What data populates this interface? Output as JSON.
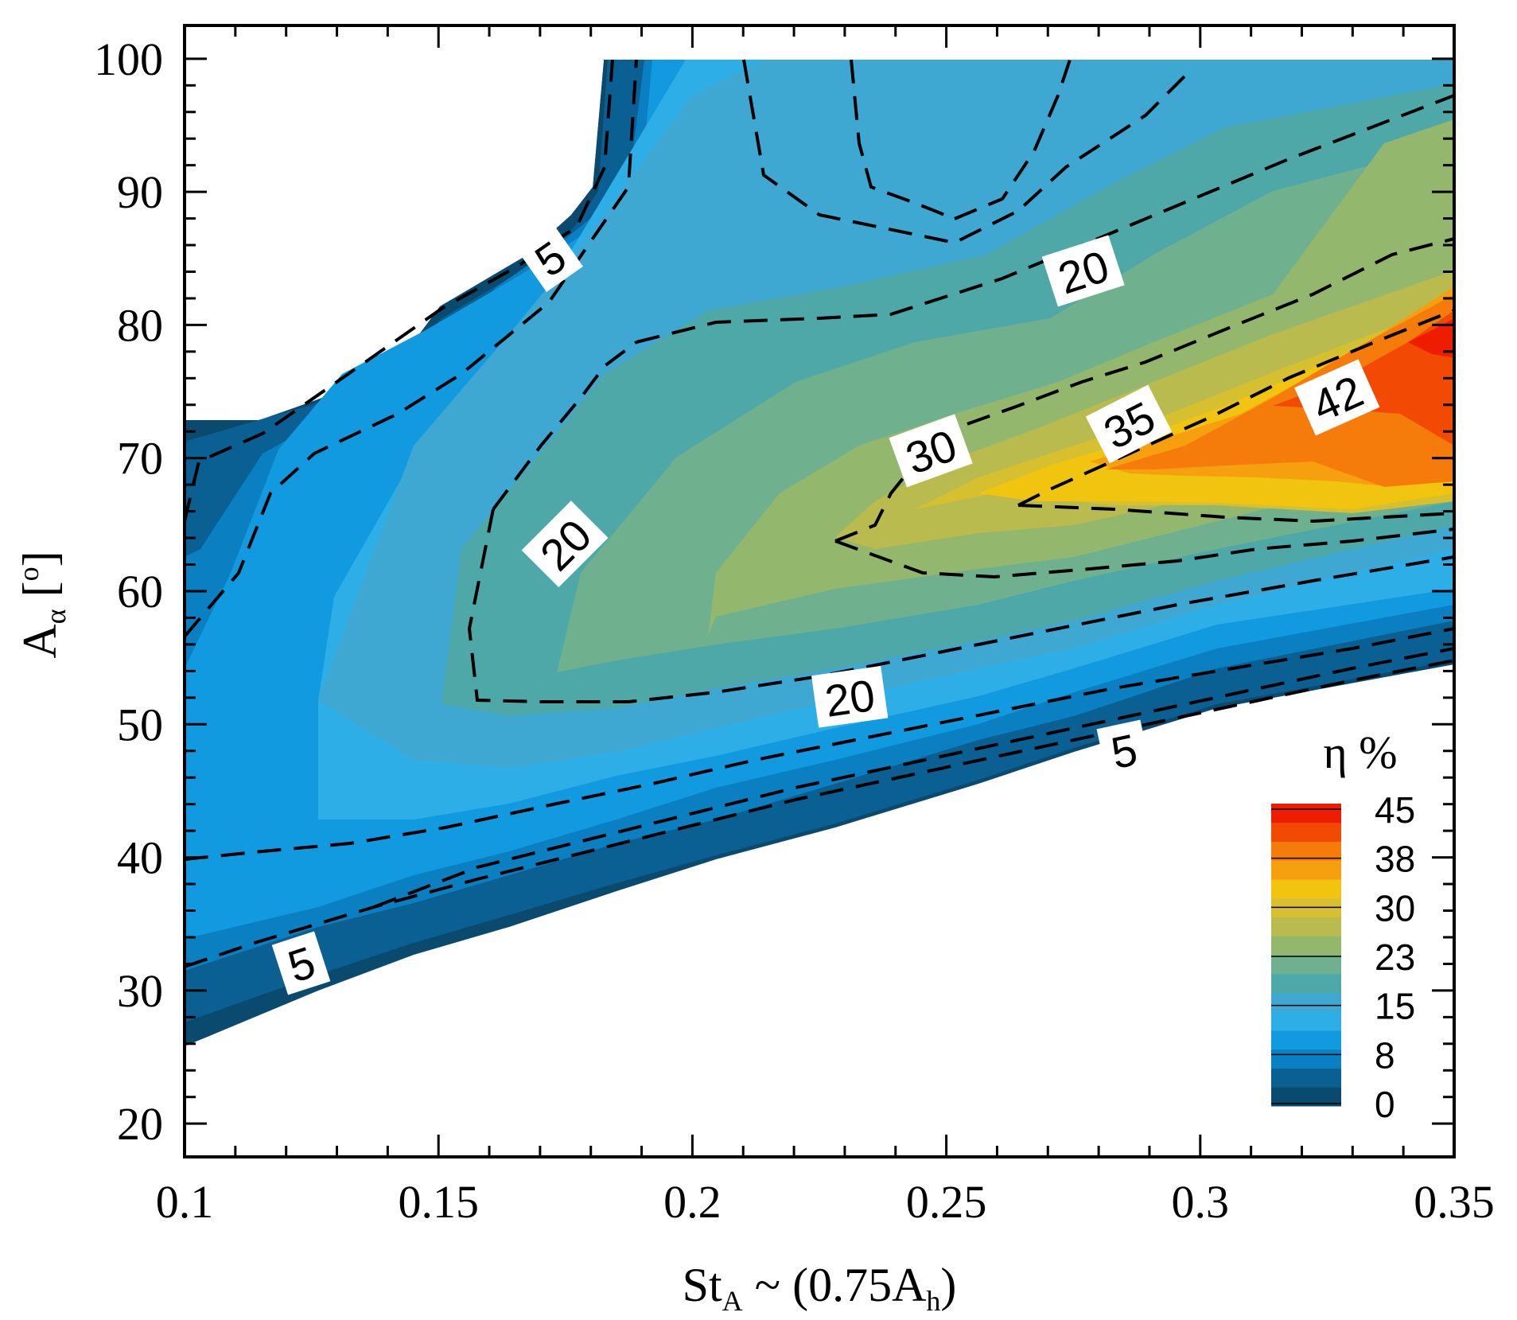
{
  "chart_data": {
    "type": "contour",
    "title": "",
    "xlabel": {
      "main": "St",
      "sub": "A",
      "rest": " ~ (0.75A",
      "sub2": "h",
      "end": ")"
    },
    "ylabel": {
      "main": "A",
      "sub": "α",
      "rest": " [",
      "sup": "o",
      "end": "]"
    },
    "xlim": [
      0.1,
      0.35
    ],
    "ylim": [
      17.5,
      102.5
    ],
    "x_ticks": [
      "0.1",
      "0.15",
      "0.2",
      "0.25",
      "0.3",
      "0.35"
    ],
    "x_tick_values": [
      0.1,
      0.15,
      0.2,
      0.25,
      0.3,
      0.35
    ],
    "y_ticks": [
      "20",
      "30",
      "40",
      "50",
      "60",
      "70",
      "80",
      "90",
      "100"
    ],
    "y_tick_values": [
      20,
      30,
      40,
      50,
      60,
      70,
      80,
      90,
      100
    ],
    "legend": {
      "title": "η %",
      "labels": [
        "45",
        "38",
        "30",
        "23",
        "15",
        "8",
        "0"
      ],
      "colors": [
        "#0a4a6e",
        "#0a5f93",
        "#0a7fc2",
        "#119ae0",
        "#2eaee6",
        "#3fa8d2",
        "#4fa8a8",
        "#6fb08f",
        "#94b76e",
        "#b9bb4e",
        "#d6c030",
        "#f1c40f",
        "#f6a010",
        "#f57c0a",
        "#f24a05",
        "#ee1c00"
      ]
    },
    "contour_labels": [
      {
        "text": "5",
        "x": 0.172,
        "y": 85.0,
        "angle": -35
      },
      {
        "text": "20",
        "x": 0.277,
        "y": 84.0,
        "angle": -18
      },
      {
        "text": "20",
        "x": 0.175,
        "y": 63.5,
        "angle": -45
      },
      {
        "text": "30",
        "x": 0.247,
        "y": 70.5,
        "angle": -20
      },
      {
        "text": "35",
        "x": 0.286,
        "y": 72.5,
        "angle": -27
      },
      {
        "text": "42",
        "x": 0.327,
        "y": 74.5,
        "angle": -24
      },
      {
        "text": "20",
        "x": 0.231,
        "y": 52.0,
        "angle": -8
      },
      {
        "text": "5",
        "x": 0.285,
        "y": 48.0,
        "angle": -12
      },
      {
        "text": "5",
        "x": 0.123,
        "y": 32.0,
        "angle": -18
      }
    ]
  }
}
